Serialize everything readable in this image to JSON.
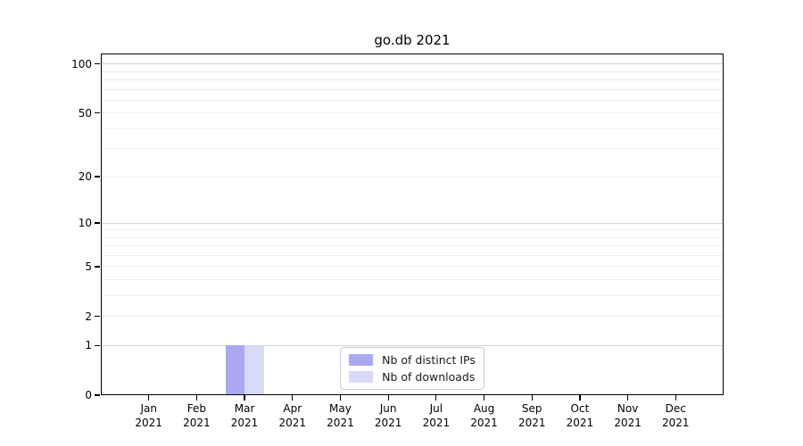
{
  "chart_data": {
    "type": "bar",
    "title": "go.db 2021",
    "xlabel": "",
    "ylabel": "",
    "categories": [
      "Jan 2021",
      "Feb 2021",
      "Mar 2021",
      "Apr 2021",
      "May 2021",
      "Jun 2021",
      "Jul 2021",
      "Aug 2021",
      "Sep 2021",
      "Oct 2021",
      "Nov 2021",
      "Dec 2021"
    ],
    "series": [
      {
        "name": "Nb of distinct IPs",
        "color": "#a9a9f2",
        "values": [
          0,
          0,
          1,
          0,
          0,
          0,
          0,
          0,
          0,
          0,
          0,
          0
        ]
      },
      {
        "name": "Nb of downloads",
        "color": "#d9d9f8",
        "values": [
          0,
          0,
          1,
          0,
          0,
          0,
          0,
          0,
          0,
          0,
          0,
          0
        ]
      }
    ],
    "y_scale": "log1p",
    "ylim": [
      0,
      116
    ],
    "y_ticks": [
      0,
      1,
      2,
      5,
      10,
      20,
      50,
      100
    ],
    "y_gridlines_major": [
      1,
      10,
      100
    ],
    "y_gridlines_minor": [
      2,
      3,
      4,
      5,
      6,
      7,
      8,
      9,
      20,
      30,
      40,
      50,
      60,
      70,
      80,
      90
    ],
    "grid": "horizontal",
    "legend_position": "lower center",
    "colors": {
      "grid_major": "#d4d4d4",
      "grid_minor": "#ececec",
      "axis": "#000000",
      "background": "#ffffff"
    }
  }
}
